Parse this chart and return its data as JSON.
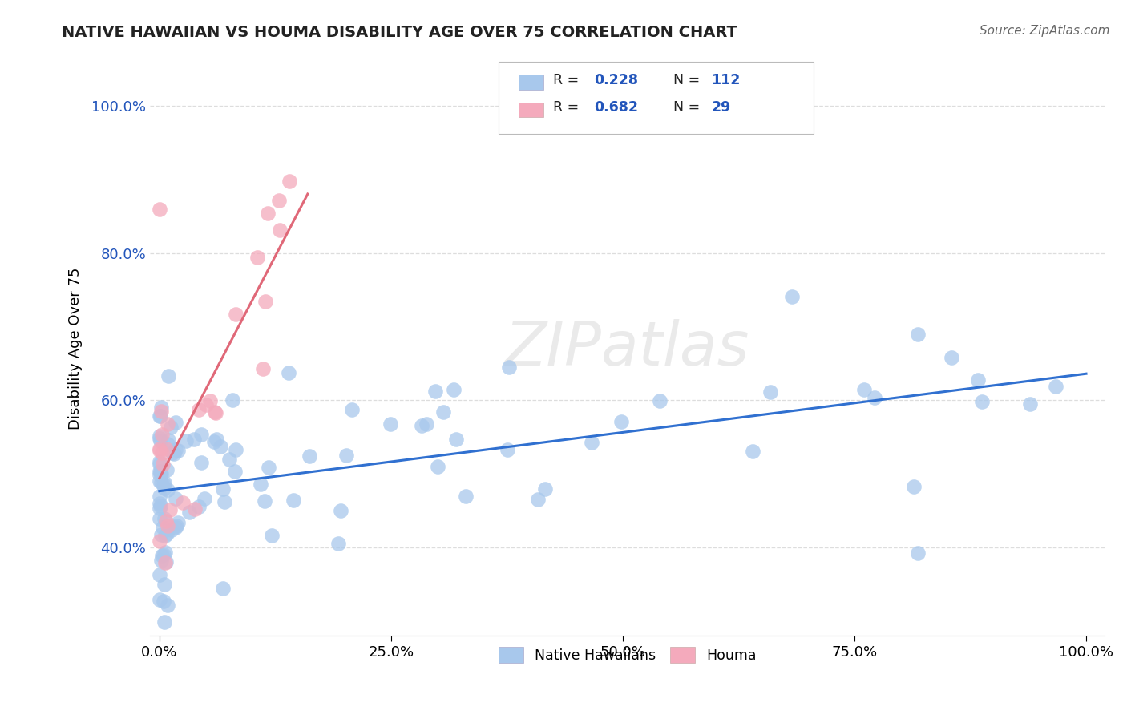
{
  "title": "NATIVE HAWAIIAN VS HOUMA DISABILITY AGE OVER 75 CORRELATION CHART",
  "source_text": "Source: ZipAtlas.com",
  "ylabel": "Disability Age Over 75",
  "xlim": [
    -0.01,
    1.02
  ],
  "ylim": [
    0.28,
    1.06
  ],
  "x_ticks": [
    0.0,
    0.25,
    0.5,
    0.75,
    1.0
  ],
  "x_tick_labels": [
    "0.0%",
    "25.0%",
    "50.0%",
    "75.0%",
    "100.0%"
  ],
  "y_ticks": [
    0.4,
    0.6,
    0.8,
    1.0
  ],
  "y_tick_labels": [
    "40.0%",
    "60.0%",
    "80.0%",
    "100.0%"
  ],
  "blue_color": "#A8C8EC",
  "pink_color": "#F4AABC",
  "blue_line_color": "#3070D0",
  "pink_line_color": "#E06878",
  "watermark": "ZIPatlas",
  "blue_R": 0.228,
  "blue_N": 112,
  "pink_R": 0.682,
  "pink_N": 29,
  "legend_text_color": "#2255BB",
  "grid_color": "#DDDDDD"
}
